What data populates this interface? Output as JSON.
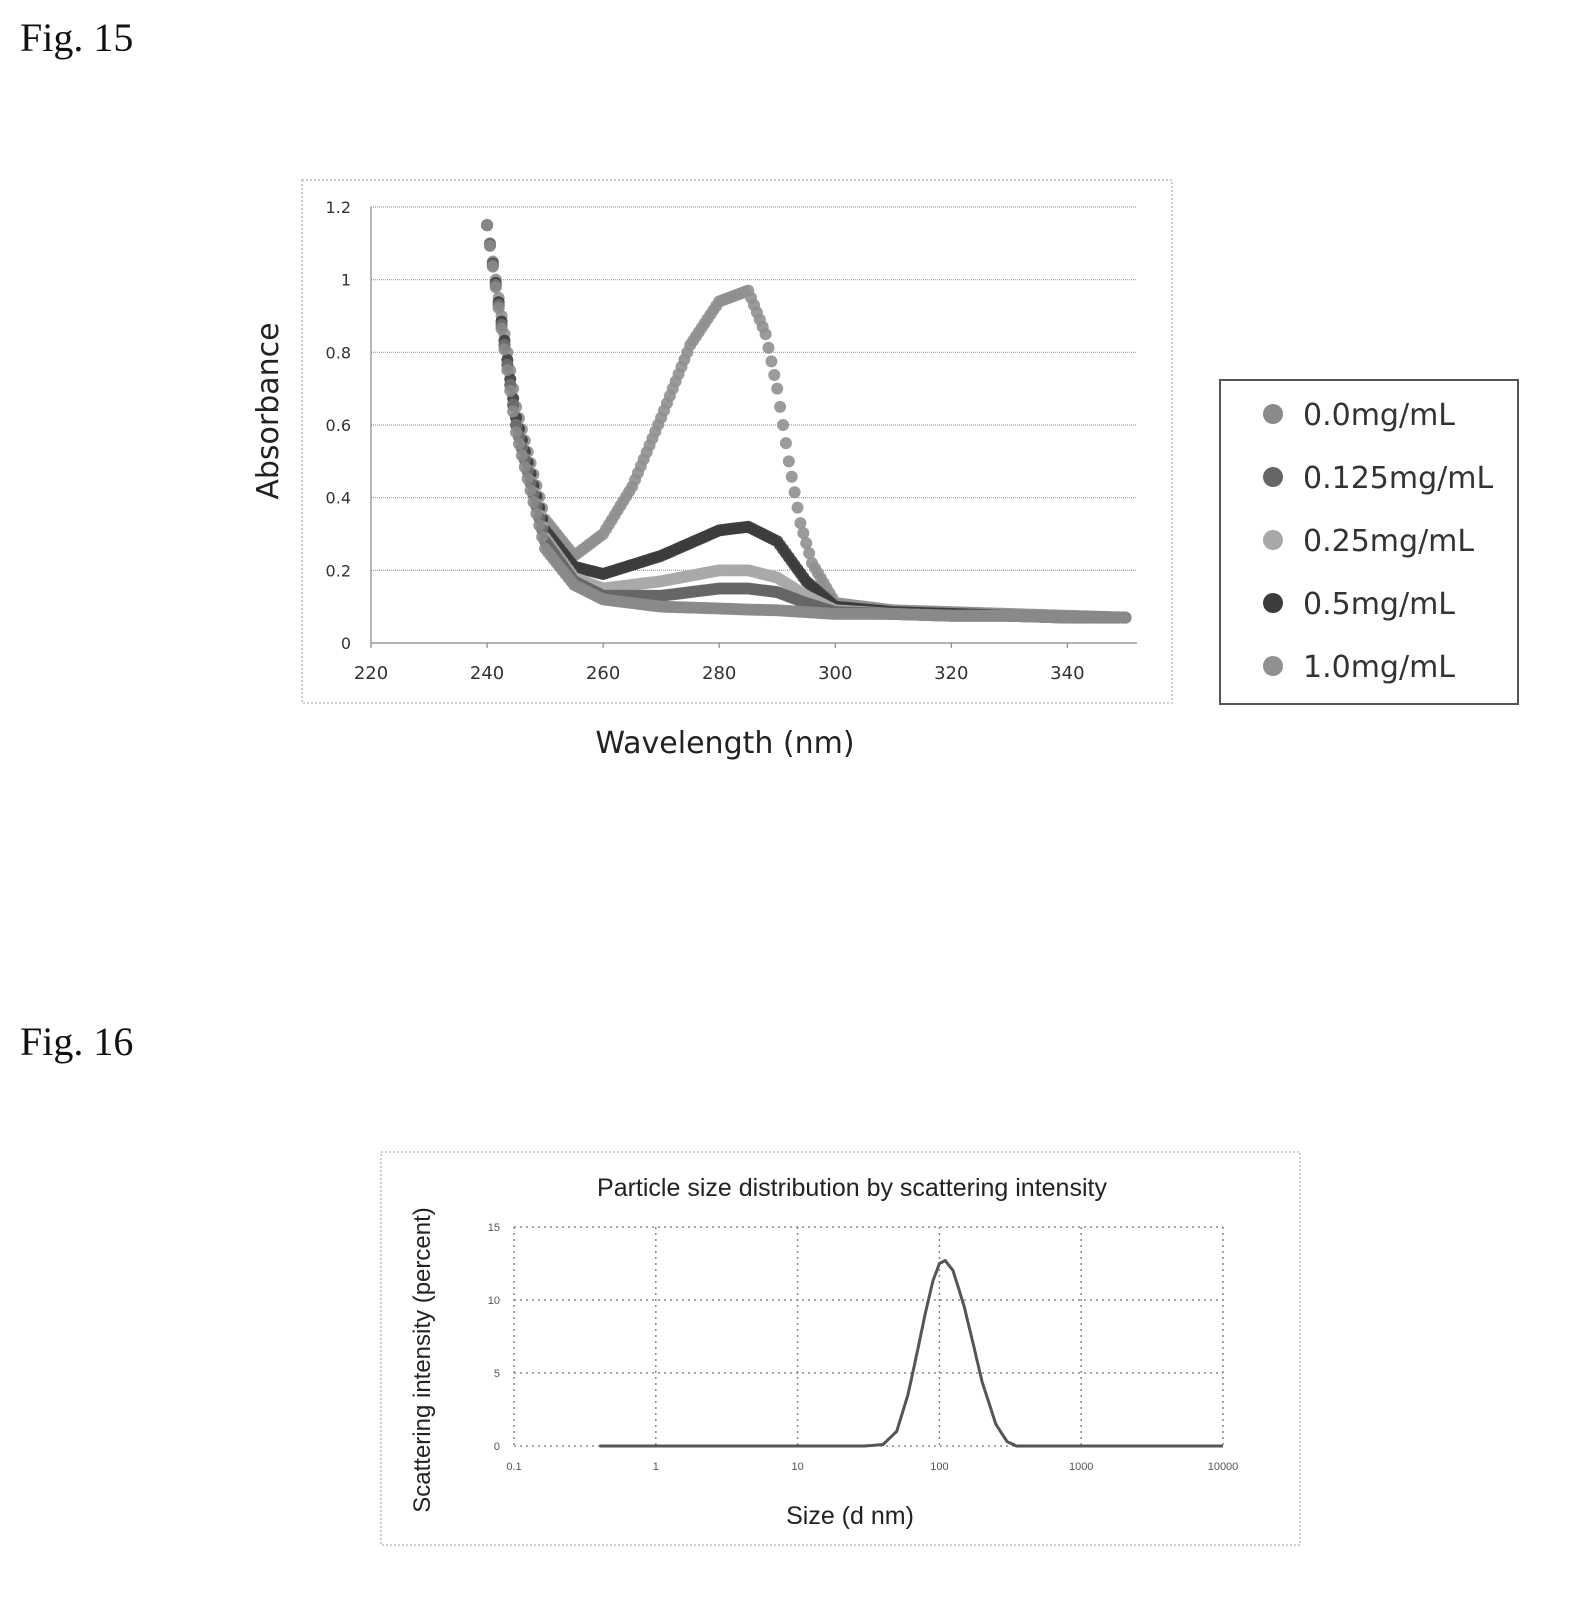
{
  "figures": {
    "fig15_label": "Fig. 15",
    "fig16_label": "Fig. 16"
  },
  "chart_data": [
    {
      "type": "scatter",
      "title": "",
      "xlabel": "Wavelength (nm)",
      "ylabel": "Absorbance",
      "xlim": [
        220,
        350
      ],
      "ylim": [
        0,
        1.2
      ],
      "x_ticks": [
        "220",
        "240",
        "260",
        "280",
        "300",
        "320",
        "340"
      ],
      "y_ticks": [
        "0",
        "0.2",
        "0.4",
        "0.6",
        "0.8",
        "1",
        "1.2"
      ],
      "grid": "horizontal",
      "legend_position": "right",
      "series": [
        {
          "name": "0.0mg/mL",
          "color": "#8a8a8a",
          "x": [
            240,
            245,
            250,
            255,
            260,
            270,
            280,
            285,
            290,
            295,
            300,
            310,
            320,
            330,
            340,
            350
          ],
          "y": [
            1.15,
            0.58,
            0.26,
            0.16,
            0.12,
            0.1,
            0.095,
            0.092,
            0.09,
            0.085,
            0.08,
            0.08,
            0.075,
            0.075,
            0.07,
            0.07
          ]
        },
        {
          "name": "0.125mg/mL",
          "color": "#666666",
          "x": [
            240,
            245,
            250,
            255,
            260,
            270,
            280,
            285,
            290,
            295,
            300,
            310,
            320,
            330,
            340,
            350
          ],
          "y": [
            1.15,
            0.6,
            0.28,
            0.17,
            0.13,
            0.13,
            0.15,
            0.15,
            0.14,
            0.11,
            0.085,
            0.08,
            0.075,
            0.075,
            0.07,
            0.07
          ]
        },
        {
          "name": "0.25mg/mL",
          "color": "#a8a8a8",
          "x": [
            240,
            245,
            250,
            255,
            260,
            270,
            280,
            285,
            290,
            295,
            300,
            310,
            320,
            330,
            340,
            350
          ],
          "y": [
            1.15,
            0.6,
            0.29,
            0.18,
            0.15,
            0.17,
            0.2,
            0.2,
            0.18,
            0.13,
            0.09,
            0.08,
            0.075,
            0.075,
            0.07,
            0.07
          ]
        },
        {
          "name": "0.5mg/mL",
          "color": "#3c3c3c",
          "x": [
            240,
            245,
            250,
            255,
            260,
            270,
            280,
            285,
            290,
            295,
            300,
            310,
            320,
            330,
            340,
            350
          ],
          "y": [
            1.15,
            0.62,
            0.31,
            0.21,
            0.19,
            0.24,
            0.31,
            0.32,
            0.28,
            0.17,
            0.1,
            0.085,
            0.08,
            0.075,
            0.07,
            0.07
          ]
        },
        {
          "name": "1.0mg/mL",
          "color": "#909090",
          "x": [
            240,
            245,
            250,
            255,
            260,
            265,
            270,
            275,
            280,
            285,
            288,
            290,
            292,
            294,
            296,
            300,
            310,
            320,
            330,
            340,
            350
          ],
          "y": [
            1.15,
            0.65,
            0.34,
            0.24,
            0.3,
            0.43,
            0.62,
            0.82,
            0.94,
            0.97,
            0.85,
            0.7,
            0.5,
            0.33,
            0.22,
            0.11,
            0.09,
            0.085,
            0.08,
            0.075,
            0.07
          ]
        }
      ]
    },
    {
      "type": "line",
      "title": "Particle size distribution by scattering intensity",
      "xlabel": "Size (d nm)",
      "ylabel": "Scattering intensity (percent)",
      "x_scale": "log",
      "xlim": [
        0.1,
        10000
      ],
      "ylim": [
        0,
        15
      ],
      "x_ticks": [
        "0.1",
        "1",
        "10",
        "100",
        "1000",
        "10000"
      ],
      "y_ticks": [
        "0",
        "5",
        "10",
        "15"
      ],
      "grid": "dotted",
      "series": [
        {
          "name": "",
          "color": "#555555",
          "x": [
            0.4,
            1,
            10,
            30,
            40,
            50,
            60,
            70,
            80,
            90,
            100,
            110,
            125,
            150,
            175,
            200,
            250,
            300,
            350,
            1000,
            10000
          ],
          "y": [
            0,
            0,
            0,
            0,
            0.1,
            1.0,
            3.5,
            6.5,
            9.2,
            11.3,
            12.5,
            12.7,
            12.0,
            9.5,
            6.8,
            4.4,
            1.5,
            0.3,
            0,
            0,
            0
          ]
        }
      ]
    }
  ]
}
